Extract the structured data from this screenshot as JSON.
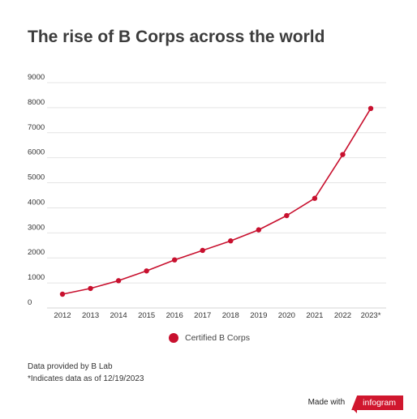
{
  "title": "The rise of B Corps across the world",
  "chart_data": {
    "type": "line",
    "title": "The rise of B Corps across the world",
    "xlabel": "",
    "ylabel": "",
    "ylim": [
      0,
      9000
    ],
    "y_ticks": [
      0,
      1000,
      2000,
      3000,
      4000,
      5000,
      6000,
      7000,
      8000,
      9000
    ],
    "categories": [
      "2012",
      "2013",
      "2014",
      "2015",
      "2016",
      "2017",
      "2018",
      "2019",
      "2020",
      "2021",
      "2022",
      "2023*"
    ],
    "series": [
      {
        "name": "Certified B Corps",
        "color": "#c8102e",
        "values": [
          550,
          780,
          1090,
          1480,
          1920,
          2300,
          2680,
          3120,
          3690,
          4380,
          6130,
          7970
        ]
      }
    ],
    "grid": true,
    "legend_position": "bottom"
  },
  "legend": {
    "label": "Certified B Corps"
  },
  "notes": {
    "source": "Data provided by B Lab",
    "asterisk": "*Indicates data as of 12/19/2023"
  },
  "branding": {
    "prefix": "Made with",
    "logo": "infogram",
    "color": "#d0172e"
  }
}
